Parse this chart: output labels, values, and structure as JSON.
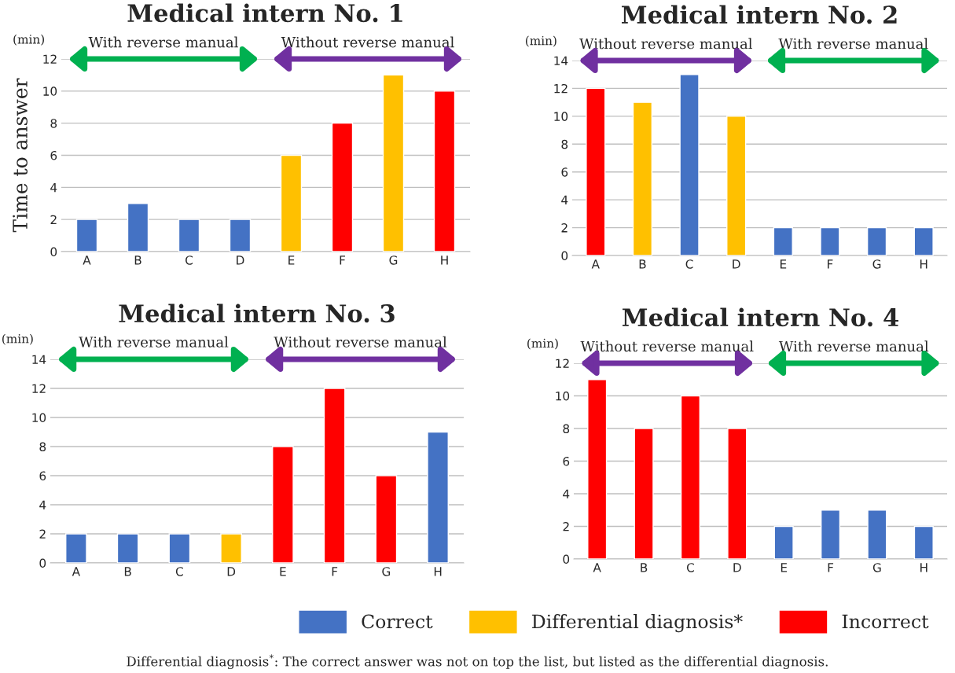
{
  "chart_data": [
    {
      "type": "bar",
      "title": "Medical intern No. 1",
      "ylabel": "Time to answer",
      "annotations": [
        "(min)",
        "With reverse manual",
        "Without reverse manual",
        "Differential diagnosis$^{*}$: The correct answer was not on top the list, but listed as the differential diagnosis."
      ],
      "categories": [
        "A",
        "B",
        "C",
        "D",
        "E",
        "F",
        "G",
        "H"
      ],
      "stacked": true,
      "series": [
        {
          "name": "Correct",
          "color": "#4472c4",
          "values": [
            2,
            3,
            2,
            2,
            null,
            null,
            null,
            null
          ]
        },
        {
          "name": "Differential diagnosis*",
          "color": "#ffc000",
          "values": [
            null,
            null,
            null,
            null,
            6,
            null,
            11,
            null
          ]
        },
        {
          "name": "Incorrect",
          "color": "#ff0000",
          "values": [
            null,
            null,
            null,
            null,
            null,
            8,
            null,
            10
          ]
        }
      ],
      "ylim": [
        0,
        12
      ],
      "yticks": [
        0,
        2,
        4,
        6,
        8,
        10,
        12
      ],
      "grid": "y",
      "legend": "bottom"
    },
    {
      "type": "bar",
      "title": "Medical intern No. 2",
      "annotations": [
        "(min)",
        "Without reverse manual",
        "With reverse manual"
      ],
      "categories": [
        "A",
        "B",
        "C",
        "D",
        "E",
        "F",
        "G",
        "H"
      ],
      "stacked": true,
      "series": [
        {
          "color": "#4472c4",
          "values": [
            null,
            null,
            13,
            null,
            2,
            2,
            2,
            2
          ]
        },
        {
          "color": "#ffc000",
          "values": [
            null,
            11,
            null,
            10,
            null,
            null,
            null,
            null
          ]
        },
        {
          "color": "#ff0000",
          "values": [
            12,
            null,
            null,
            null,
            null,
            null,
            null,
            null
          ]
        }
      ],
      "ylim": [
        0,
        14
      ],
      "yticks": [
        0,
        2,
        4,
        6,
        8,
        10,
        12,
        14
      ],
      "grid": "y"
    },
    {
      "type": "bar",
      "title": "Medical intern No. 3",
      "annotations": [
        "(min)",
        "With reverse manual",
        "Without reverse manual"
      ],
      "categories": [
        "A",
        "B",
        "C",
        "D",
        "E",
        "F",
        "G",
        "H"
      ],
      "stacked": true,
      "series": [
        {
          "color": "#4472c4",
          "values": [
            2,
            2,
            2,
            null,
            null,
            null,
            null,
            9
          ]
        },
        {
          "color": "#ffc000",
          "values": [
            null,
            null,
            null,
            2,
            null,
            null,
            null,
            null
          ]
        },
        {
          "color": "#ff0000",
          "values": [
            null,
            null,
            null,
            null,
            8,
            12,
            6,
            null
          ]
        }
      ],
      "ylim": [
        0,
        14
      ],
      "yticks": [
        0,
        2,
        4,
        6,
        8,
        10,
        12,
        14
      ],
      "grid": "y"
    },
    {
      "type": "bar",
      "title": "Medical intern No. 4",
      "annotations": [
        "(min)",
        "Without reverse manual",
        "With reverse manual"
      ],
      "categories": [
        "A",
        "B",
        "C",
        "D",
        "E",
        "F",
        "G",
        "H"
      ],
      "stacked": true,
      "series": [
        {
          "color": "#4472c4",
          "values": [
            null,
            null,
            null,
            null,
            2,
            3,
            3,
            2
          ]
        },
        {
          "color": "#ff0000",
          "values": [
            11,
            8,
            10,
            8,
            null,
            null,
            null,
            null
          ]
        }
      ],
      "ylim": [
        0,
        12
      ],
      "yticks": [
        0,
        2,
        4,
        6,
        8,
        10,
        12
      ],
      "grid": "y"
    }
  ]
}
